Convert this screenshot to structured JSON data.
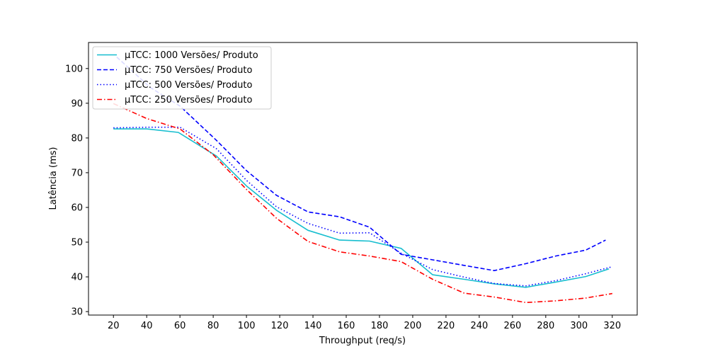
{
  "chart_data": {
    "type": "line",
    "title": "",
    "xlabel": "Throughput (req/s)",
    "ylabel": "Latência (ms)",
    "xlim": [
      5,
      335
    ],
    "ylim": [
      29,
      107.5
    ],
    "xticks": [
      20,
      40,
      60,
      80,
      100,
      120,
      140,
      160,
      180,
      200,
      220,
      240,
      260,
      280,
      300,
      320
    ],
    "yticks": [
      30,
      40,
      50,
      60,
      70,
      80,
      90,
      100
    ],
    "grid": false,
    "legend_position": "top-left",
    "series": [
      {
        "name": "µTCC: 1000 Versões/ Produto",
        "color": "#17becf",
        "dash": "solid",
        "x": [
          20,
          40,
          59,
          82,
          100,
          118,
          137,
          156,
          174,
          193,
          212,
          231,
          249,
          268,
          286,
          304,
          318
        ],
        "y": [
          82.6,
          82.6,
          81.6,
          74.8,
          66.2,
          59.2,
          53.4,
          50.6,
          50.3,
          48.2,
          40.6,
          39.3,
          38.0,
          37.0,
          38.5,
          40.1,
          42.3
        ]
      },
      {
        "name": "µTCC: 750 Versões/ Produto",
        "color": "#0000ff",
        "dash": "dashed",
        "x": [
          22,
          42,
          60,
          82,
          100,
          118,
          137,
          156,
          174,
          193,
          212,
          231,
          249,
          268,
          286,
          304,
          316
        ],
        "y": [
          103.3,
          94.6,
          89.2,
          79.3,
          70.6,
          63.5,
          58.7,
          57.3,
          54.3,
          46.5,
          44.9,
          43.3,
          41.8,
          43.8,
          46.0,
          47.7,
          50.6
        ]
      },
      {
        "name": "µTCC: 500 Versões/ Produto",
        "color": "#0000ff",
        "dash": "dotted",
        "x": [
          20,
          40,
          60,
          82,
          100,
          118,
          137,
          156,
          174,
          193,
          212,
          231,
          249,
          268,
          286,
          304,
          319
        ],
        "y": [
          82.9,
          83.1,
          83.1,
          76.9,
          67.8,
          60.2,
          55.4,
          52.6,
          52.7,
          46.8,
          42.1,
          39.9,
          38.1,
          37.4,
          38.9,
          40.9,
          42.8
        ]
      },
      {
        "name": "µTCC: 250 Versões/ Produto",
        "color": "#ff0000",
        "dash": "dashdot",
        "x": [
          20,
          40,
          60,
          80,
          100,
          118,
          137,
          156,
          174,
          193,
          212,
          231,
          249,
          268,
          286,
          304,
          320
        ],
        "y": [
          89.9,
          85.6,
          82.6,
          75.2,
          65.2,
          56.9,
          50.2,
          47.2,
          46.0,
          44.4,
          39.3,
          35.3,
          34.2,
          32.6,
          33.1,
          33.9,
          35.2
        ]
      }
    ]
  }
}
